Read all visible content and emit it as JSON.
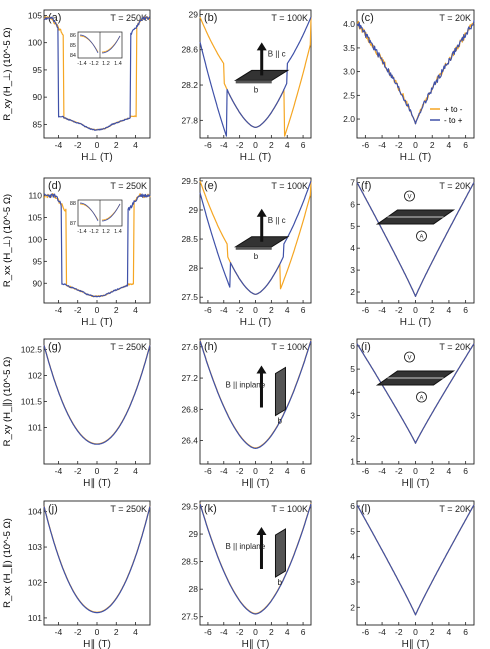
{
  "colors": {
    "series_plus_to_minus": "#f5a623",
    "series_minus_to_plus": "#3f51a8",
    "axes": "#222222"
  },
  "legend": {
    "items": [
      {
        "label": "+ to -",
        "color": "#f5a623"
      },
      {
        "label": "- to +",
        "color": "#3f51a8"
      }
    ]
  },
  "row_labels": [
    "R_xy (H_⊥) (10^-5 Ω)",
    "R_xx (H_⊥) (10^-5 Ω)",
    "R_xy (H_∥) (10^-5 Ω)",
    "R_xx (H_∥) (10^-5 Ω)"
  ],
  "chart_data": [
    {
      "id": "a",
      "type": "line",
      "letter": "(a)",
      "temp": "T = 250K",
      "xlabel": "H⊥ (T)",
      "xlim": [
        -5.5,
        5.5
      ],
      "ylim": [
        82.5,
        106
      ],
      "xticks": [
        -4,
        -2,
        0,
        2,
        4
      ],
      "yticks": [
        85,
        90,
        95,
        100,
        105
      ],
      "shape": "hysteresis",
      "sat": 104.5,
      "low": 84,
      "sw": 3.5,
      "noise": 0.6,
      "inset": true,
      "inset_yticks": [
        84,
        85,
        86
      ],
      "inset_xticks": [
        -1.4,
        -1.2,
        1.2,
        1.4
      ]
    },
    {
      "id": "b",
      "type": "line",
      "letter": "(b)",
      "temp": "T = 100K",
      "xlabel": "H⊥ (T)",
      "xlim": [
        -7,
        7
      ],
      "ylim": [
        27.6,
        29.05
      ],
      "xticks": [
        -6,
        -4,
        -2,
        0,
        2,
        4,
        6
      ],
      "yticks": [
        27.8,
        28.2,
        28.6,
        29.0
      ],
      "shape": "jump",
      "base": 27.72,
      "amp": 1.25,
      "sw": 4,
      "jump": 0.55,
      "diagram": {
        "field": "B || c",
        "side": "b"
      }
    },
    {
      "id": "c",
      "type": "line",
      "letter": "(c)",
      "temp": "T = 20K",
      "xlabel": "H⊥ (T)",
      "xlim": [
        -7,
        7
      ],
      "ylim": [
        1.6,
        4.3
      ],
      "xticks": [
        -6,
        -4,
        -2,
        0,
        2,
        4,
        6
      ],
      "yticks": [
        2.0,
        2.5,
        3.0,
        3.5,
        4.0
      ],
      "shape": "cusp",
      "base": 1.9,
      "amp": 2.15,
      "power": 0.85,
      "noise": 0.12
    },
    {
      "id": "d",
      "type": "line",
      "letter": "(d)",
      "temp": "T = 250K",
      "xlabel": "H⊥ (T)",
      "xlim": [
        -5.5,
        5.5
      ],
      "ylim": [
        85.5,
        114
      ],
      "xticks": [
        -4,
        -2,
        0,
        2,
        4
      ],
      "yticks": [
        90,
        95,
        100,
        105,
        110
      ],
      "shape": "hysteresis",
      "sat": 110,
      "low": 87,
      "sw": 3.2,
      "noise": 0.9,
      "inset": true,
      "inset_yticks": [
        87,
        88
      ],
      "inset_xticks": [
        -1.4,
        -1.2,
        1.2,
        1.4
      ]
    },
    {
      "id": "e",
      "type": "line",
      "letter": "(e)",
      "temp": "T = 100K",
      "xlabel": "H⊥ (T)",
      "xlim": [
        -7,
        7
      ],
      "ylim": [
        27.4,
        29.55
      ],
      "xticks": [
        -6,
        -4,
        -2,
        0,
        2,
        4,
        6
      ],
      "yticks": [
        27.5,
        28.0,
        28.5,
        29.0,
        29.5
      ],
      "shape": "jump",
      "base": 27.55,
      "amp": 1.95,
      "sw": 3.5,
      "jump": 0.45,
      "diagram": {
        "field": "B || c",
        "side": "b"
      }
    },
    {
      "id": "f",
      "type": "line",
      "letter": "(f)",
      "temp": "T = 20K",
      "xlabel": "H⊥ (T)",
      "xlim": [
        -7,
        7
      ],
      "ylim": [
        1.5,
        7.2
      ],
      "xticks": [
        -6,
        -4,
        -2,
        0,
        2,
        4,
        6
      ],
      "yticks": [
        2,
        3,
        4,
        5,
        6,
        7
      ],
      "shape": "cusp",
      "base": 1.8,
      "amp": 5.2,
      "power": 0.95,
      "noise": 0,
      "diagram": {
        "kind": "contacts-va",
        "v": "V",
        "a": "A"
      }
    },
    {
      "id": "g",
      "type": "line",
      "letter": "(g)",
      "temp": "T = 250K",
      "xlabel": "H∥ (T)",
      "xlim": [
        -5.5,
        5.5
      ],
      "ylim": [
        100.3,
        102.7
      ],
      "xticks": [
        -4,
        -2,
        0,
        2,
        4
      ],
      "yticks": [
        101.0,
        101.5,
        102.0,
        102.5
      ],
      "shape": "parabola",
      "base": 100.68,
      "amp": 1.9,
      "power": 2
    },
    {
      "id": "h",
      "type": "line",
      "letter": "(h)",
      "temp": "T = 100K",
      "xlabel": "H∥ (T)",
      "xlim": [
        -7,
        7
      ],
      "ylim": [
        26.1,
        27.7
      ],
      "xticks": [
        -6,
        -4,
        -2,
        0,
        2,
        4,
        6
      ],
      "yticks": [
        26.4,
        26.8,
        27.2,
        27.6
      ],
      "shape": "parabola",
      "base": 26.3,
      "amp": 1.38,
      "power": 1.7,
      "diagram": {
        "field": "B || inplane",
        "side": "b"
      }
    },
    {
      "id": "i",
      "type": "line",
      "letter": "(i)",
      "temp": "T = 20K",
      "xlabel": "H∥ (T)",
      "xlim": [
        -7,
        7
      ],
      "ylim": [
        0.9,
        6.3
      ],
      "xticks": [
        -6,
        -4,
        -2,
        0,
        2,
        4,
        6
      ],
      "yticks": [
        1,
        2,
        3,
        4,
        5,
        6
      ],
      "shape": "cusp",
      "base": 1.8,
      "amp": 4.3,
      "power": 0.95,
      "diagram": {
        "kind": "contacts-av",
        "v": "V",
        "a": "A"
      }
    },
    {
      "id": "j",
      "type": "line",
      "letter": "(j)",
      "temp": "T = 250K",
      "xlabel": "H∥ (T)",
      "xlim": [
        -5.5,
        5.5
      ],
      "ylim": [
        100.8,
        104.3
      ],
      "xticks": [
        -4,
        -2,
        0,
        2,
        4
      ],
      "yticks": [
        101,
        102,
        103,
        104
      ],
      "shape": "parabola",
      "base": 101.15,
      "amp": 3.0,
      "power": 2
    },
    {
      "id": "k",
      "type": "line",
      "letter": "(k)",
      "temp": "T = 100K",
      "xlabel": "H∥ (T)",
      "xlim": [
        -7,
        7
      ],
      "ylim": [
        27.35,
        29.6
      ],
      "xticks": [
        -6,
        -4,
        -2,
        0,
        2,
        4,
        6
      ],
      "yticks": [
        27.5,
        28.0,
        28.5,
        29.0,
        29.5
      ],
      "shape": "parabola",
      "base": 27.55,
      "amp": 2.0,
      "power": 1.7,
      "diagram": {
        "field": "B || inplane",
        "side": "b"
      }
    },
    {
      "id": "l",
      "type": "line",
      "letter": "(l)",
      "temp": "T = 20K",
      "xlabel": "H∥ (T)",
      "xlim": [
        -7,
        7
      ],
      "ylim": [
        1.3,
        6.2
      ],
      "xticks": [
        -6,
        -4,
        -2,
        0,
        2,
        4,
        6
      ],
      "yticks": [
        2,
        3,
        4,
        5,
        6
      ],
      "shape": "cusp",
      "base": 1.7,
      "amp": 4.35,
      "power": 0.95
    }
  ]
}
